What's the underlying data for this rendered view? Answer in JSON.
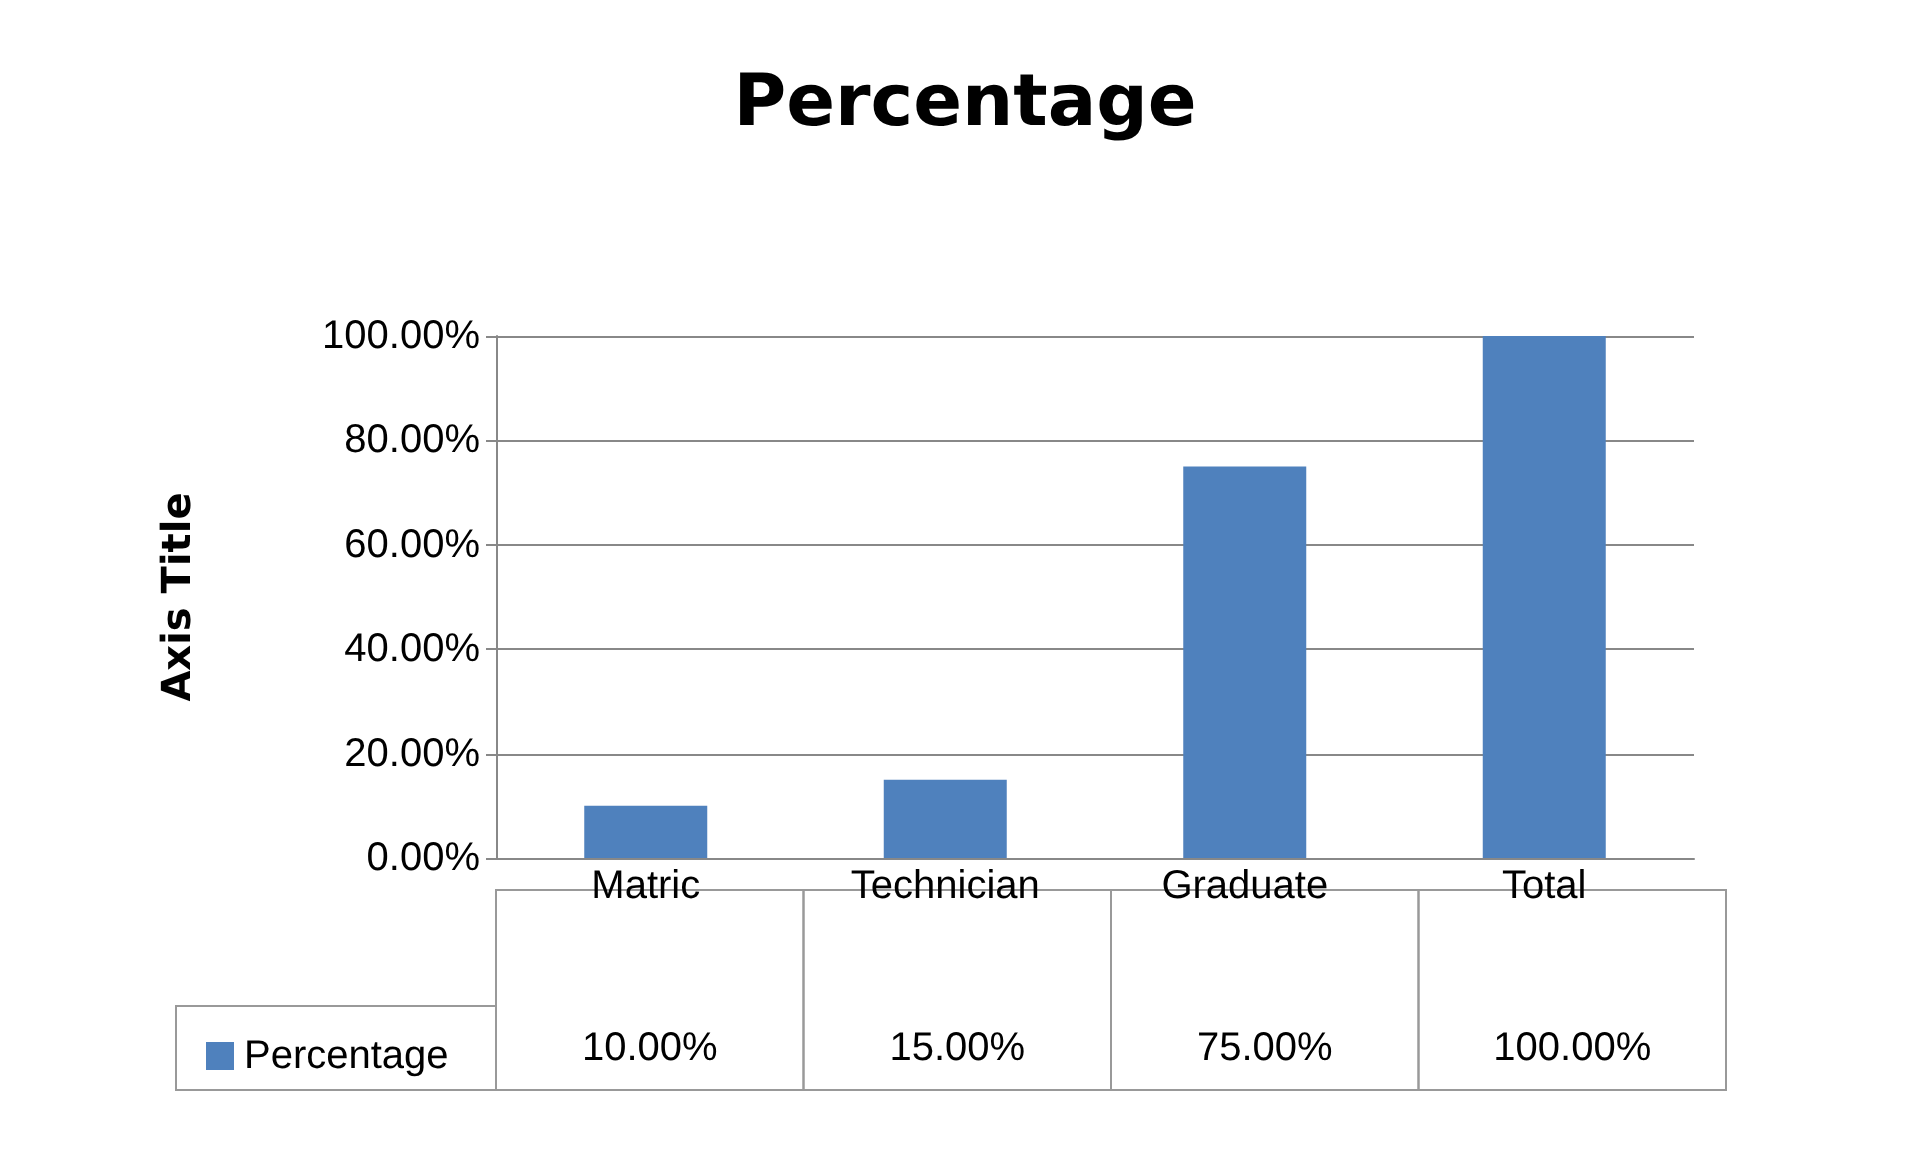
{
  "chart_data": {
    "type": "bar",
    "title": "Percentage",
    "ylabel": "Axis Title",
    "categories": [
      "Matric",
      "Technician",
      "Graduate",
      "Total"
    ],
    "series": [
      {
        "name": "Percentage",
        "color": "#4f81bd",
        "values": [
          10,
          15,
          75,
          100
        ],
        "value_labels": [
          "10.00%",
          "15.00%",
          "75.00%",
          "100.00%"
        ]
      }
    ],
    "ylim": [
      0,
      100
    ],
    "yticks": [
      {
        "value": 0,
        "label": "0.00%"
      },
      {
        "value": 20,
        "label": "20.00%"
      },
      {
        "value": 40,
        "label": "40.00%"
      },
      {
        "value": 60,
        "label": "60.00%"
      },
      {
        "value": 80,
        "label": "80.00%"
      },
      {
        "value": 100,
        "label": "100.00%"
      }
    ],
    "grid": true,
    "legend": "bottom left"
  }
}
